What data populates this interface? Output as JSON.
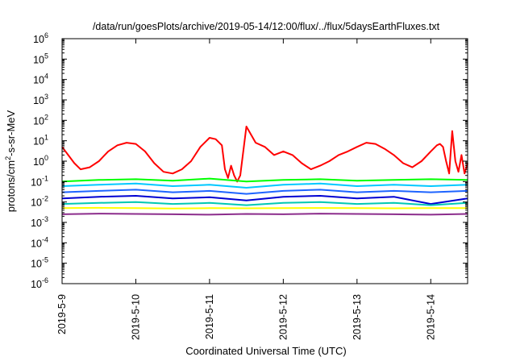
{
  "chart_data": {
    "type": "line",
    "title": "/data/run/goesPlots/archive/2019-05-14/12:00/flux/../flux/5daysEarthFluxes.txt",
    "xlabel": "Coordinated Universal Time (UTC)",
    "ylabel": {
      "pre": "protons/cm",
      "sup": "2",
      "post": "-s-sr-MeV"
    },
    "yscale": "log",
    "ylim": [
      1e-06,
      1000000.0
    ],
    "xlim": [
      "2019-05-09T00:00",
      "2019-05-14T12:00"
    ],
    "grid": false,
    "legend": "none",
    "x_ticks": [
      "2019-5-9",
      "2019-5-10",
      "2019-5-11",
      "2019-5-12",
      "2019-5-13",
      "2019-5-14"
    ],
    "y_ticks": [
      {
        "base": "10",
        "exp": "-6"
      },
      {
        "base": "10",
        "exp": "-5"
      },
      {
        "base": "10",
        "exp": "-4"
      },
      {
        "base": "10",
        "exp": "-3"
      },
      {
        "base": "10",
        "exp": "-2"
      },
      {
        "base": "10",
        "exp": "-1"
      },
      {
        "base": "10",
        "exp": "0"
      },
      {
        "base": "10",
        "exp": "1"
      },
      {
        "base": "10",
        "exp": "2"
      },
      {
        "base": "10",
        "exp": "3"
      },
      {
        "base": "10",
        "exp": "4"
      },
      {
        "base": "10",
        "exp": "5"
      },
      {
        "base": "10",
        "exp": "6"
      }
    ],
    "series": [
      {
        "color": "#ff0000",
        "x": [
          "2019-05-09T00:00",
          "2019-05-09T02:00",
          "2019-05-09T04:00",
          "2019-05-09T06:00",
          "2019-05-09T09:00",
          "2019-05-09T12:00",
          "2019-05-09T15:00",
          "2019-05-09T18:00",
          "2019-05-09T21:00",
          "2019-05-10T00:00",
          "2019-05-10T03:00",
          "2019-05-10T06:00",
          "2019-05-10T09:00",
          "2019-05-10T12:00",
          "2019-05-10T15:00",
          "2019-05-10T18:00",
          "2019-05-10T21:00",
          "2019-05-11T00:00",
          "2019-05-11T02:00",
          "2019-05-11T04:00",
          "2019-05-11T05:00",
          "2019-05-11T06:00",
          "2019-05-11T07:00",
          "2019-05-11T08:00",
          "2019-05-11T09:00",
          "2019-05-11T10:00",
          "2019-05-11T12:00",
          "2019-05-11T15:00",
          "2019-05-11T18:00",
          "2019-05-11T21:00",
          "2019-05-12T00:00",
          "2019-05-12T03:00",
          "2019-05-12T06:00",
          "2019-05-12T09:00",
          "2019-05-12T12:00",
          "2019-05-12T15:00",
          "2019-05-12T18:00",
          "2019-05-12T21:00",
          "2019-05-13T00:00",
          "2019-05-13T03:00",
          "2019-05-13T06:00",
          "2019-05-13T09:00",
          "2019-05-13T12:00",
          "2019-05-13T15:00",
          "2019-05-13T18:00",
          "2019-05-13T21:00",
          "2019-05-14T00:00",
          "2019-05-14T02:00",
          "2019-05-14T03:00",
          "2019-05-14T04:00",
          "2019-05-14T05:00",
          "2019-05-14T06:00",
          "2019-05-14T07:00",
          "2019-05-14T08:00",
          "2019-05-14T09:00",
          "2019-05-14T10:00",
          "2019-05-14T11:00",
          "2019-05-14T12:00"
        ],
        "y": [
          5,
          2,
          0.8,
          0.4,
          0.5,
          1,
          3,
          6,
          8,
          7,
          3,
          0.8,
          0.3,
          0.25,
          0.4,
          1,
          5,
          14,
          12,
          6,
          0.4,
          0.15,
          0.6,
          0.2,
          0.1,
          0.2,
          50,
          8,
          5,
          2,
          3,
          2,
          0.8,
          0.4,
          0.6,
          1,
          2,
          3,
          5,
          8,
          7,
          4,
          2,
          0.8,
          0.5,
          1,
          3,
          6,
          7,
          5,
          1,
          0.25,
          30,
          1,
          0.3,
          2,
          0.25,
          0.8
        ]
      },
      {
        "color": "#00ff00",
        "x": [
          "2019-05-09T00:00",
          "2019-05-09T12:00",
          "2019-05-10T00:00",
          "2019-05-10T12:00",
          "2019-05-11T00:00",
          "2019-05-11T12:00",
          "2019-05-12T00:00",
          "2019-05-12T12:00",
          "2019-05-13T00:00",
          "2019-05-13T12:00",
          "2019-05-14T00:00",
          "2019-05-14T12:00"
        ],
        "y": [
          0.1,
          0.12,
          0.13,
          0.11,
          0.14,
          0.1,
          0.12,
          0.13,
          0.11,
          0.12,
          0.13,
          0.12
        ]
      },
      {
        "color": "#00c8ff",
        "x": [
          "2019-05-09T00:00",
          "2019-05-09T12:00",
          "2019-05-10T00:00",
          "2019-05-10T12:00",
          "2019-05-11T00:00",
          "2019-05-11T12:00",
          "2019-05-12T00:00",
          "2019-05-12T12:00",
          "2019-05-13T00:00",
          "2019-05-13T12:00",
          "2019-05-14T00:00",
          "2019-05-14T12:00"
        ],
        "y": [
          0.06,
          0.07,
          0.08,
          0.06,
          0.07,
          0.05,
          0.07,
          0.08,
          0.06,
          0.07,
          0.06,
          0.07
        ]
      },
      {
        "color": "#1e64ff",
        "x": [
          "2019-05-09T00:00",
          "2019-05-09T12:00",
          "2019-05-10T00:00",
          "2019-05-10T12:00",
          "2019-05-11T00:00",
          "2019-05-11T12:00",
          "2019-05-12T00:00",
          "2019-05-12T12:00",
          "2019-05-13T00:00",
          "2019-05-13T12:00",
          "2019-05-14T00:00",
          "2019-05-14T12:00"
        ],
        "y": [
          0.03,
          0.035,
          0.04,
          0.03,
          0.035,
          0.025,
          0.035,
          0.04,
          0.03,
          0.035,
          0.03,
          0.035
        ]
      },
      {
        "color": "#0000d2",
        "x": [
          "2019-05-09T00:00",
          "2019-05-09T12:00",
          "2019-05-10T00:00",
          "2019-05-10T12:00",
          "2019-05-11T00:00",
          "2019-05-11T12:00",
          "2019-05-12T00:00",
          "2019-05-12T12:00",
          "2019-05-13T00:00",
          "2019-05-13T12:00",
          "2019-05-14T00:00",
          "2019-05-14T12:00"
        ],
        "y": [
          0.015,
          0.018,
          0.02,
          0.015,
          0.017,
          0.012,
          0.018,
          0.02,
          0.015,
          0.018,
          0.008,
          0.015
        ]
      },
      {
        "color": "#00c8b4",
        "x": [
          "2019-05-09T00:00",
          "2019-05-09T12:00",
          "2019-05-10T00:00",
          "2019-05-10T12:00",
          "2019-05-11T00:00",
          "2019-05-11T12:00",
          "2019-05-12T00:00",
          "2019-05-12T12:00",
          "2019-05-13T00:00",
          "2019-05-13T12:00",
          "2019-05-14T00:00",
          "2019-05-14T12:00"
        ],
        "y": [
          0.008,
          0.009,
          0.01,
          0.008,
          0.009,
          0.007,
          0.009,
          0.01,
          0.008,
          0.009,
          0.007,
          0.009
        ]
      },
      {
        "color": "#ffff00",
        "x": [
          "2019-05-09T00:00",
          "2019-05-09T12:00",
          "2019-05-10T00:00",
          "2019-05-10T12:00",
          "2019-05-11T00:00",
          "2019-05-11T12:00",
          "2019-05-12T00:00",
          "2019-05-12T12:00",
          "2019-05-13T00:00",
          "2019-05-13T12:00",
          "2019-05-14T00:00",
          "2019-05-14T12:00"
        ],
        "y": [
          0.005,
          0.0052,
          0.005,
          0.0048,
          0.005,
          0.0049,
          0.005,
          0.0051,
          0.005,
          0.0049,
          0.005,
          0.005
        ]
      },
      {
        "color": "#8c2d8c",
        "x": [
          "2019-05-09T00:00",
          "2019-05-09T12:00",
          "2019-05-10T00:00",
          "2019-05-10T12:00",
          "2019-05-11T00:00",
          "2019-05-11T12:00",
          "2019-05-12T00:00",
          "2019-05-12T12:00",
          "2019-05-13T00:00",
          "2019-05-13T12:00",
          "2019-05-14T00:00",
          "2019-05-14T12:00"
        ],
        "y": [
          0.0025,
          0.0027,
          0.0026,
          0.0025,
          0.0024,
          0.0026,
          0.0025,
          0.0027,
          0.0026,
          0.0025,
          0.0024,
          0.0026
        ]
      }
    ]
  }
}
